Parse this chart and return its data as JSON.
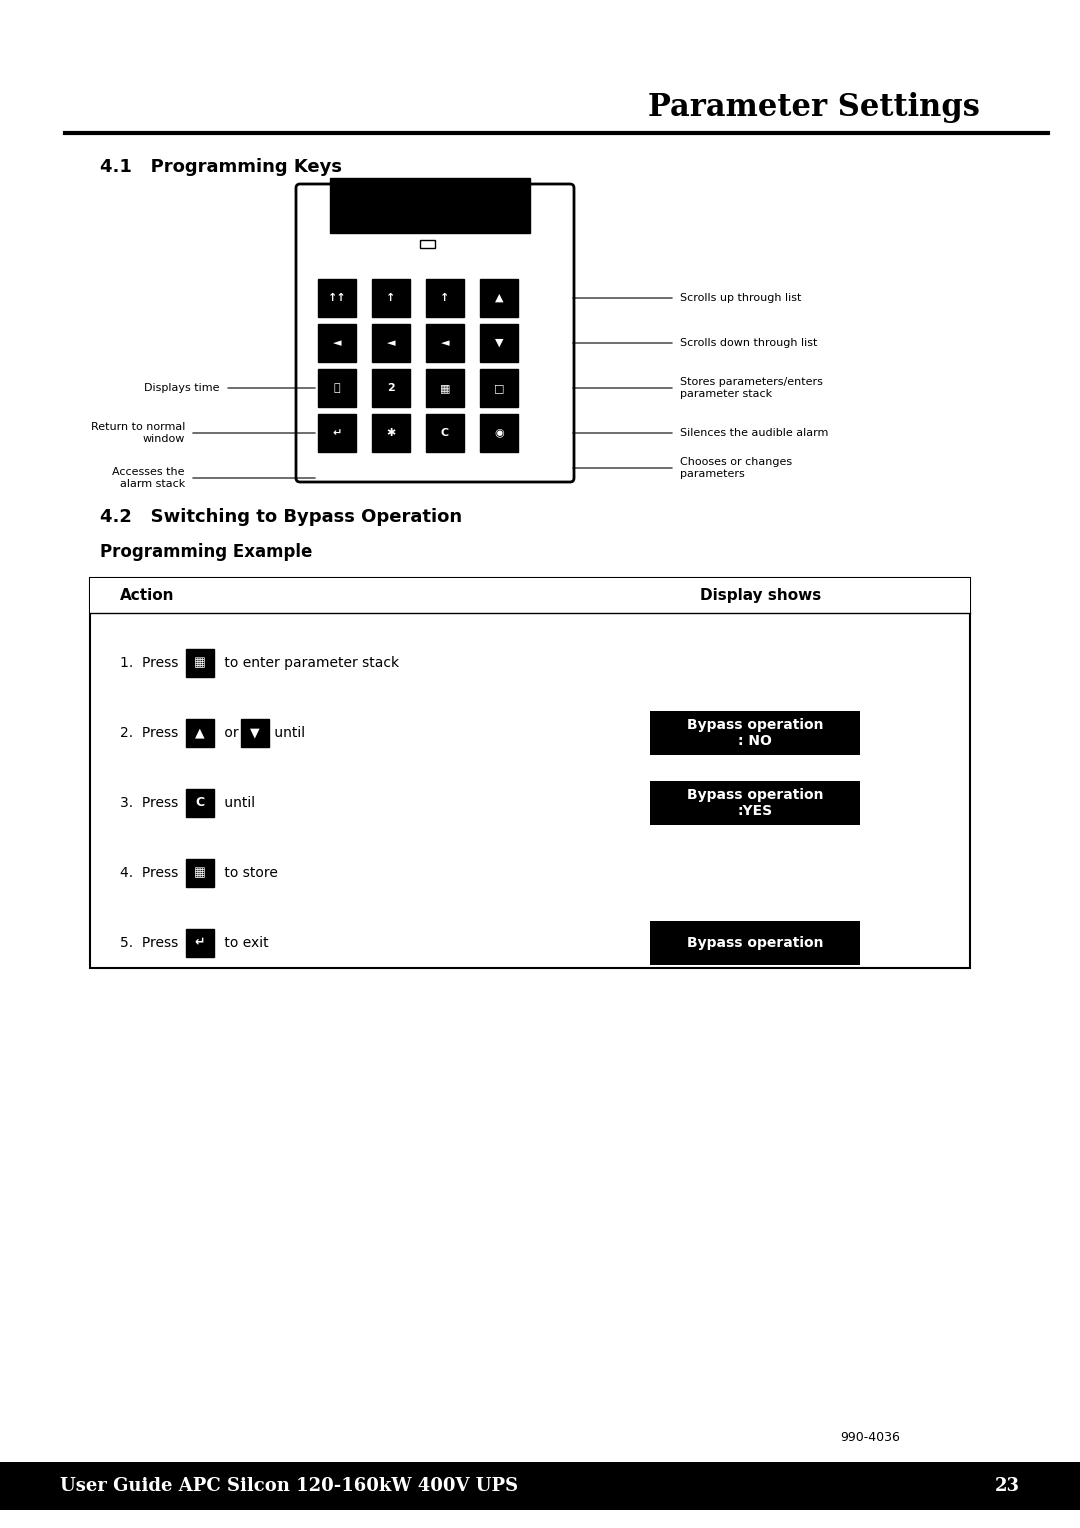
{
  "title": "Parameter Settings",
  "section1": "4.1   Programming Keys",
  "section2": "4.2   Switching to Bypass Operation",
  "section2_sub": "Programming Example",
  "bg_color": "#ffffff",
  "footer_text": "User Guide APC Silcon 120-160kW 400V UPS",
  "footer_page": "23",
  "ref_number": "990-4036",
  "table_header_left": "Action",
  "table_header_right": "Display shows",
  "step1": "1.  Press",
  "step1_rest": " to enter parameter stack",
  "step2": "2.  Press",
  "step2_mid": " or ",
  "step2_rest": " until",
  "step3": "3.  Press",
  "step3_rest": " until",
  "step4": "4.  Press",
  "step4_rest": " to store",
  "step5": "5.  Press",
  "step5_rest": " to exit",
  "display2": "Bypass operation\n: NO",
  "display3": "Bypass operation\n:YES",
  "display5": "Bypass operation",
  "annotations_left": [
    "Displays time",
    "Return to normal\nwindow",
    "Accesses the\nalarm stack"
  ],
  "annotations_right": [
    "Scrolls up through list",
    "Scrolls down through list",
    "Stores parameters/enters\nparameter stack",
    "Silences the audible alarm",
    "Chooses or changes\nparameters"
  ]
}
